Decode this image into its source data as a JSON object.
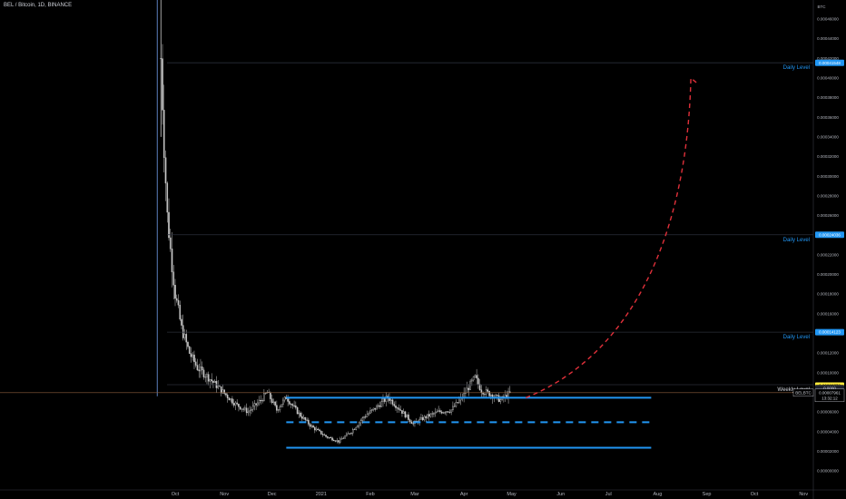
{
  "header": {
    "title": "BEL / Bitcoin, 1D, BINANCE",
    "currency": "BTC"
  },
  "price_badges": {
    "symbol": "BELBTC",
    "last_price": "0.00007961",
    "countdown": "13:32:12",
    "weekly_level_price": "0.00008772",
    "partial_label": "0.0000"
  },
  "colors": {
    "background": "#000000",
    "candle": "#c8c8c8",
    "level_line": "#2196f3",
    "projection": "#e0303a",
    "weekly_badge": "#ffeb3b",
    "price_line": "#8b5e3c",
    "axis_text": "#b2b5be"
  },
  "chart_data": {
    "type": "candlestick",
    "symbol": "BEL / Bitcoin",
    "interval": "1D",
    "exchange": "BINANCE",
    "y_unit": "BTC",
    "ylim": [
      0.0,
      0.000472
    ],
    "y_ticks": [
      "0.00000000",
      "0.00002000",
      "0.00004000",
      "0.00006000",
      "0.00008000",
      "0.00010000",
      "0.00012000",
      "0.00014000",
      "0.00016000",
      "0.00018000",
      "0.00020000",
      "0.00022000",
      "0.00024000",
      "0.00026000",
      "0.00028000",
      "0.00030000",
      "0.00032000",
      "0.00034000",
      "0.00036000",
      "0.00038000",
      "0.00040000",
      "0.00042000",
      "0.00044000",
      "0.00046000"
    ],
    "x_ticks": [
      "Oct",
      "Nov",
      "Dec",
      "2021",
      "Feb",
      "Mar",
      "Apr",
      "May",
      "Jun",
      "Jul",
      "Aug",
      "Sep",
      "Oct",
      "Nov"
    ],
    "price_close_series": [
      {
        "x": "2020-09-22",
        "y": 0.00042
      },
      {
        "x": "2020-09-24",
        "y": 0.00033
      },
      {
        "x": "2020-09-26",
        "y": 0.00026
      },
      {
        "x": "2020-09-28",
        "y": 0.000225
      },
      {
        "x": "2020-10-01",
        "y": 0.00018
      },
      {
        "x": "2020-10-05",
        "y": 0.000145
      },
      {
        "x": "2020-10-10",
        "y": 0.00012
      },
      {
        "x": "2020-10-15",
        "y": 0.000105
      },
      {
        "x": "2020-10-22",
        "y": 9.5e-05
      },
      {
        "x": "2020-10-30",
        "y": 8.2e-05
      },
      {
        "x": "2020-11-08",
        "y": 6.8e-05
      },
      {
        "x": "2020-11-16",
        "y": 6e-05
      },
      {
        "x": "2020-11-24",
        "y": 7.2e-05
      },
      {
        "x": "2020-11-28",
        "y": 8e-05
      },
      {
        "x": "2020-12-04",
        "y": 6.2e-05
      },
      {
        "x": "2020-12-10",
        "y": 7.5e-05
      },
      {
        "x": "2020-12-18",
        "y": 5.8e-05
      },
      {
        "x": "2020-12-26",
        "y": 4.5e-05
      },
      {
        "x": "2021-01-04",
        "y": 3.5e-05
      },
      {
        "x": "2021-01-12",
        "y": 3e-05
      },
      {
        "x": "2021-01-20",
        "y": 4e-05
      },
      {
        "x": "2021-01-28",
        "y": 5.5e-05
      },
      {
        "x": "2021-02-05",
        "y": 6.5e-05
      },
      {
        "x": "2021-02-12",
        "y": 7.5e-05
      },
      {
        "x": "2021-02-20",
        "y": 6.2e-05
      },
      {
        "x": "2021-02-28",
        "y": 4.8e-05
      },
      {
        "x": "2021-03-08",
        "y": 5.5e-05
      },
      {
        "x": "2021-03-16",
        "y": 6e-05
      },
      {
        "x": "2021-03-24",
        "y": 6.2e-05
      },
      {
        "x": "2021-03-31",
        "y": 7.5e-05
      },
      {
        "x": "2021-04-05",
        "y": 8.8e-05
      },
      {
        "x": "2021-04-08",
        "y": 9.5e-05
      },
      {
        "x": "2021-04-12",
        "y": 8.2e-05
      },
      {
        "x": "2021-04-18",
        "y": 7.8e-05
      },
      {
        "x": "2021-04-24",
        "y": 7.2e-05
      },
      {
        "x": "2021-04-30",
        "y": 7.9e-05
      }
    ],
    "annotations": [
      {
        "label": "Daily Level",
        "price": 0.00041548,
        "price_label": "0.00041548",
        "color": "#2196f3"
      },
      {
        "label": "Daily Level",
        "price": 0.00024036,
        "price_label": "0.00024036",
        "color": "#2196f3"
      },
      {
        "label": "Daily Level",
        "price": 0.00014123,
        "price_label": "0.00014123",
        "color": "#2196f3"
      },
      {
        "label": "Weekly Level",
        "price": 8.772e-05,
        "price_label": "0.00008772",
        "color": "#ffeb3b"
      }
    ],
    "range_lines": [
      {
        "style": "solid",
        "price": 7.45e-05,
        "x_start": "2020-12-10",
        "x_end": "2021-07-28"
      },
      {
        "style": "dashed",
        "price": 4.95e-05,
        "x_start": "2020-12-10",
        "x_end": "2021-07-28"
      },
      {
        "style": "solid",
        "price": 2.35e-05,
        "x_start": "2020-12-10",
        "x_end": "2021-07-28"
      }
    ],
    "projection": {
      "style": "dashed",
      "from": {
        "x": "2021-05-10",
        "y": 7.45e-05
      },
      "to": {
        "x": "2021-08-22",
        "y": 0.0004
      }
    },
    "last_price": 7.961e-05
  }
}
